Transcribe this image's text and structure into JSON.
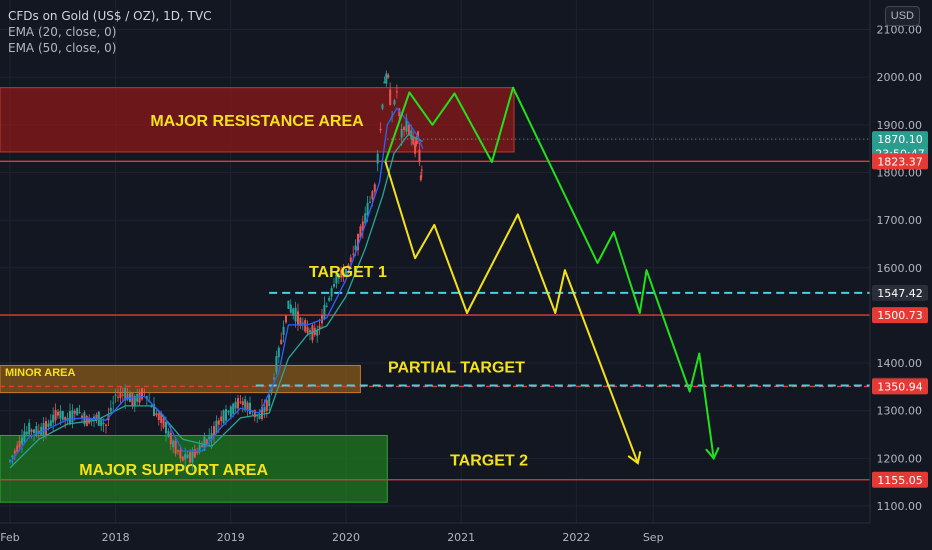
{
  "header": {
    "symbol_title": "CFDs on Gold (US$ / OZ), 1D, TVC",
    "indicator_1": "EMA (20, close, 0)",
    "indicator_2": "EMA (50, close, 0)",
    "currency_button": "USD"
  },
  "colors": {
    "background": "#131722",
    "grid": "#1f2330",
    "axis_text": "#b2b5be",
    "candle_up": "#26a69a",
    "candle_down": "#ef5350",
    "ema_20": "#2962ff",
    "ema_50": "#26a69a",
    "resistance_zone": "#8b1a1a",
    "minor_zone": "#8a5a1a",
    "support_zone": "#1f7a1f",
    "green_projection": "#22e01a",
    "yellow_projection": "#f5e11a",
    "red_level": "#e53935",
    "cyan_level": "#40d4e8",
    "label_text": "#f5e11a"
  },
  "chart_data": {
    "type": "line",
    "title": "CFDs on Gold (US$ / OZ), 1D, TVC",
    "x_axis": {
      "tick_labels": [
        "Feb",
        "2018",
        "2019",
        "2020",
        "2021",
        "2022",
        "Sep"
      ],
      "tick_positions_months": [
        0,
        11,
        23,
        35,
        47,
        59,
        67
      ]
    },
    "y_axis": {
      "range": [
        1080,
        2140
      ],
      "ticks": [
        1100,
        1200,
        1300,
        1400,
        1500,
        1600,
        1700,
        1800,
        1900,
        2000,
        2100
      ],
      "tick_labels": [
        "1100.00",
        "1200.00",
        "1300.00",
        "1400.00",
        "1500.00",
        "1600.00",
        "1700.00",
        "1800.00",
        "1900.00",
        "2000.00",
        "2100.00"
      ]
    },
    "price_badges": [
      {
        "value": 1870.1,
        "label": "1870.10",
        "color": "#2a9d8f"
      },
      {
        "value": 1840.0,
        "label": "23:50:47",
        "color": "#2a9d8f"
      },
      {
        "value": 1823.37,
        "label": "1823.37",
        "color": "#e53935"
      },
      {
        "value": 1547.42,
        "label": "1547.42",
        "color": "#2a2e39"
      },
      {
        "value": 1500.73,
        "label": "1500.73",
        "color": "#e53935"
      },
      {
        "value": 1352.8,
        "label": "1352.80",
        "color": "#2a2e39"
      },
      {
        "value": 1350.94,
        "label": "1350.94",
        "color": "#e53935"
      },
      {
        "value": 1155.05,
        "label": "1155.05",
        "color": "#e53935"
      }
    ],
    "zones": [
      {
        "label": "MAJOR RESISTANCE AREA",
        "x_months": [
          0,
          52.5
        ],
        "y_range": [
          1843,
          1978
        ],
        "kind": "resistance"
      },
      {
        "label": "MINOR AREA",
        "x_months": [
          0,
          36.5
        ],
        "y_range": [
          1338,
          1395
        ],
        "kind": "minor"
      },
      {
        "label": "MAJOR SUPPORT AREA",
        "x_months": [
          0,
          39.3
        ],
        "y_range": [
          1108,
          1248
        ],
        "kind": "support"
      }
    ],
    "horizontal_levels": [
      {
        "value": 1823.37,
        "x_from_months": 0,
        "style": "solid",
        "kind": "red"
      },
      {
        "value": 1500.73,
        "x_from_months": 0,
        "style": "solid",
        "kind": "red"
      },
      {
        "value": 1350.94,
        "x_from_months": 0,
        "style": "dashed",
        "kind": "red"
      },
      {
        "value": 1155.05,
        "x_from_months": 0,
        "style": "solid",
        "kind": "red"
      },
      {
        "value": 1547.42,
        "x_from_months": 27.0,
        "style": "dashed",
        "kind": "cyan"
      },
      {
        "value": 1352.8,
        "x_from_months": 25.6,
        "style": "dashed",
        "kind": "cyan"
      },
      {
        "value": 1870.1,
        "x_from_months": 39.3,
        "style": "dotted",
        "kind": "teal"
      }
    ],
    "text_labels": [
      {
        "text": "TARGET 1",
        "x_months": 35.2,
        "value": 1581
      },
      {
        "text": "PARTIAL TARGET",
        "x_months": 46.5,
        "value": 1380
      },
      {
        "text": "TARGET 2",
        "x_months": 49.9,
        "value": 1185
      }
    ],
    "projections": [
      {
        "name": "green",
        "points": [
          [
            39.1,
            1823
          ],
          [
            41.6,
            1968
          ],
          [
            44.0,
            1900
          ],
          [
            46.3,
            1966
          ],
          [
            50.2,
            1822
          ],
          [
            52.4,
            1978
          ],
          [
            61.2,
            1610
          ],
          [
            62.9,
            1675
          ],
          [
            65.6,
            1505
          ],
          [
            66.3,
            1595
          ],
          [
            70.8,
            1340
          ],
          [
            71.8,
            1420
          ],
          [
            73.3,
            1200
          ]
        ],
        "arrow": true
      },
      {
        "name": "yellow",
        "points": [
          [
            39.1,
            1823
          ],
          [
            42.2,
            1620
          ],
          [
            44.2,
            1690
          ],
          [
            47.6,
            1505
          ],
          [
            52.9,
            1712
          ],
          [
            56.8,
            1505
          ],
          [
            57.8,
            1595
          ],
          [
            65.4,
            1190
          ]
        ],
        "arrow": true
      }
    ],
    "price_path": [
      [
        0,
        1195
      ],
      [
        1,
        1232
      ],
      [
        2,
        1260
      ],
      [
        3,
        1255
      ],
      [
        4,
        1268
      ],
      [
        5,
        1296
      ],
      [
        6,
        1280
      ],
      [
        7,
        1300
      ],
      [
        8,
        1280
      ],
      [
        9,
        1285
      ],
      [
        10,
        1270
      ],
      [
        11,
        1330
      ],
      [
        12,
        1335
      ],
      [
        13,
        1320
      ],
      [
        14,
        1340
      ],
      [
        15,
        1300
      ],
      [
        16,
        1275
      ],
      [
        17,
        1230
      ],
      [
        18,
        1200
      ],
      [
        19,
        1205
      ],
      [
        20,
        1225
      ],
      [
        21,
        1248
      ],
      [
        22,
        1285
      ],
      [
        23,
        1300
      ],
      [
        24,
        1320
      ],
      [
        25,
        1305
      ],
      [
        26,
        1285
      ],
      [
        27,
        1320
      ],
      [
        28,
        1420
      ],
      [
        29,
        1520
      ],
      [
        30,
        1495
      ],
      [
        31,
        1470
      ],
      [
        32,
        1462
      ],
      [
        33,
        1520
      ],
      [
        34,
        1580
      ],
      [
        35,
        1590
      ],
      [
        36,
        1640
      ],
      [
        37,
        1705
      ],
      [
        38,
        1770
      ],
      [
        38.6,
        1890
      ],
      [
        39.0,
        1990
      ],
      [
        39.4,
        2000
      ],
      [
        39.8,
        1920
      ],
      [
        40.3,
        1970
      ],
      [
        40.8,
        1880
      ],
      [
        41.3,
        1900
      ],
      [
        41.8,
        1880
      ],
      [
        42.2,
        1850
      ],
      [
        42.5,
        1880
      ],
      [
        42.8,
        1790
      ],
      [
        43.0,
        1823
      ]
    ],
    "ema_20_path": [
      [
        0,
        1190
      ],
      [
        2,
        1245
      ],
      [
        4,
        1262
      ],
      [
        6,
        1282
      ],
      [
        8,
        1285
      ],
      [
        10,
        1280
      ],
      [
        12,
        1325
      ],
      [
        14,
        1330
      ],
      [
        16,
        1290
      ],
      [
        18,
        1215
      ],
      [
        20,
        1215
      ],
      [
        22,
        1265
      ],
      [
        24,
        1305
      ],
      [
        26,
        1295
      ],
      [
        28,
        1380
      ],
      [
        29,
        1480
      ],
      [
        31,
        1480
      ],
      [
        33,
        1495
      ],
      [
        35,
        1575
      ],
      [
        37,
        1690
      ],
      [
        38.5,
        1780
      ],
      [
        39.3,
        1900
      ],
      [
        40.3,
        1935
      ],
      [
        41.5,
        1905
      ],
      [
        42.5,
        1875
      ],
      [
        43.0,
        1850
      ]
    ],
    "ema_50_path": [
      [
        0,
        1180
      ],
      [
        3,
        1240
      ],
      [
        6,
        1272
      ],
      [
        9,
        1280
      ],
      [
        12,
        1310
      ],
      [
        15,
        1310
      ],
      [
        18,
        1240
      ],
      [
        21,
        1225
      ],
      [
        24,
        1285
      ],
      [
        27,
        1295
      ],
      [
        29,
        1410
      ],
      [
        31,
        1460
      ],
      [
        33,
        1478
      ],
      [
        35,
        1540
      ],
      [
        37,
        1640
      ],
      [
        38.8,
        1750
      ],
      [
        40,
        1840
      ],
      [
        41.5,
        1880
      ],
      [
        43.0,
        1865
      ]
    ]
  }
}
